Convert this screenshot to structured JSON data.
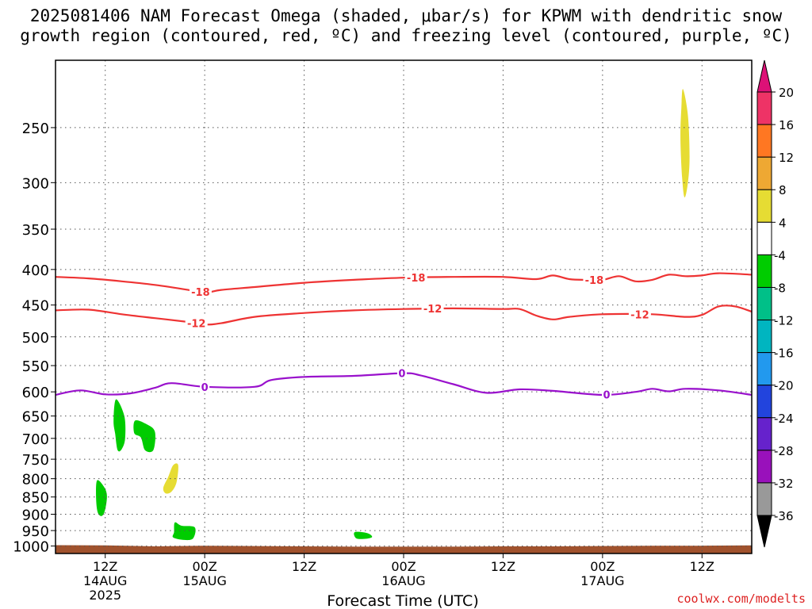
{
  "title": {
    "line1": "2025081406 NAM Forecast Omega (shaded, μbar/s) for KPWM with dendritic snow",
    "line2": "growth region (contoured, red, ºC) and freezing level (contoured, purple, ºC)"
  },
  "footer": "coolwx.com/modelts",
  "chart_data": {
    "type": "time-height",
    "xlabel": "Forecast Time (UTC)",
    "ylabel": "",
    "x_unit": "hours since 2025-08-14 06Z",
    "x_range": [
      0,
      84
    ],
    "y_ticks": [
      250,
      300,
      350,
      400,
      450,
      500,
      550,
      600,
      650,
      700,
      750,
      800,
      850,
      900,
      950,
      1000
    ],
    "y_range": [
      200,
      1025
    ],
    "y_scale": "log",
    "grid": true,
    "x_ticks": [
      {
        "hour": 6,
        "label": "12Z",
        "date": "14AUG",
        "year": "2025"
      },
      {
        "hour": 18,
        "label": "00Z",
        "date": "15AUG",
        "year": ""
      },
      {
        "hour": 30,
        "label": "12Z",
        "date": "",
        "year": ""
      },
      {
        "hour": 42,
        "label": "00Z",
        "date": "16AUG",
        "year": ""
      },
      {
        "hour": 54,
        "label": "12Z",
        "date": "",
        "year": ""
      },
      {
        "hour": 66,
        "label": "00Z",
        "date": "17AUG",
        "year": ""
      },
      {
        "hour": 78,
        "label": "12Z",
        "date": "",
        "year": ""
      }
    ],
    "contours": [
      {
        "name": "-18",
        "color": "#ee3333",
        "points": [
          [
            0,
            410
          ],
          [
            4,
            412
          ],
          [
            8,
            416
          ],
          [
            12,
            421
          ],
          [
            16,
            428
          ],
          [
            18,
            432
          ],
          [
            20,
            428
          ],
          [
            24,
            424
          ],
          [
            30,
            418
          ],
          [
            36,
            414
          ],
          [
            42,
            411
          ],
          [
            48,
            410
          ],
          [
            54,
            410
          ],
          [
            58,
            413
          ],
          [
            60,
            408
          ],
          [
            62,
            413
          ],
          [
            64,
            414
          ],
          [
            66,
            414
          ],
          [
            68,
            409
          ],
          [
            70,
            416
          ],
          [
            72,
            414
          ],
          [
            74,
            407
          ],
          [
            76,
            409
          ],
          [
            78,
            408
          ],
          [
            80,
            405
          ],
          [
            84,
            407
          ]
        ],
        "labels": [
          {
            "hour": 17.5,
            "text": "-18"
          },
          {
            "hour": 43.5,
            "text": "-18"
          },
          {
            "hour": 65,
            "text": "-18"
          }
        ]
      },
      {
        "name": "-12",
        "color": "#ee3333",
        "points": [
          [
            0,
            458
          ],
          [
            4,
            457
          ],
          [
            8,
            464
          ],
          [
            12,
            470
          ],
          [
            16,
            476
          ],
          [
            18,
            480
          ],
          [
            20,
            478
          ],
          [
            24,
            468
          ],
          [
            30,
            462
          ],
          [
            36,
            458
          ],
          [
            42,
            456
          ],
          [
            48,
            455
          ],
          [
            54,
            456
          ],
          [
            56,
            456
          ],
          [
            58,
            466
          ],
          [
            60,
            472
          ],
          [
            62,
            468
          ],
          [
            66,
            464
          ],
          [
            72,
            464
          ],
          [
            76,
            468
          ],
          [
            78,
            465
          ],
          [
            80,
            452
          ],
          [
            82,
            452
          ],
          [
            84,
            460
          ]
        ],
        "labels": [
          {
            "hour": 17,
            "text": "-12"
          },
          {
            "hour": 45.5,
            "text": "-12"
          },
          {
            "hour": 70.5,
            "text": "-12"
          }
        ]
      },
      {
        "name": "0",
        "color": "#9911cc",
        "points": [
          [
            0,
            606
          ],
          [
            3,
            597
          ],
          [
            6,
            605
          ],
          [
            9,
            603
          ],
          [
            12,
            592
          ],
          [
            14,
            583
          ],
          [
            18,
            590
          ],
          [
            24,
            590
          ],
          [
            26,
            577
          ],
          [
            30,
            571
          ],
          [
            36,
            569
          ],
          [
            42,
            564
          ],
          [
            44,
            568
          ],
          [
            48,
            585
          ],
          [
            52,
            602
          ],
          [
            56,
            595
          ],
          [
            60,
            598
          ],
          [
            66,
            606
          ],
          [
            70,
            600
          ],
          [
            72,
            594
          ],
          [
            74,
            599
          ],
          [
            76,
            594
          ],
          [
            80,
            597
          ],
          [
            84,
            606
          ]
        ],
        "labels": [
          {
            "hour": 18,
            "text": "0"
          },
          {
            "hour": 41.8,
            "text": "0"
          },
          {
            "hour": 66.5,
            "text": "0"
          }
        ]
      }
    ],
    "omega_regions": [
      {
        "color": "#00cc00",
        "points": [
          [
            7.3,
            615
          ],
          [
            8.3,
            650
          ],
          [
            8.4,
            700
          ],
          [
            8.0,
            725
          ],
          [
            7.5,
            728
          ],
          [
            7.2,
            690
          ],
          [
            7.0,
            660
          ]
        ]
      },
      {
        "color": "#00cc00",
        "points": [
          [
            9.6,
            660
          ],
          [
            11.0,
            668
          ],
          [
            12.0,
            685
          ],
          [
            11.8,
            728
          ],
          [
            10.8,
            728
          ],
          [
            10.3,
            698
          ],
          [
            9.5,
            688
          ]
        ]
      },
      {
        "color": "#00cc00",
        "points": [
          [
            5.0,
            805
          ],
          [
            5.8,
            820
          ],
          [
            6.2,
            845
          ],
          [
            6.0,
            885
          ],
          [
            5.6,
            905
          ],
          [
            5.1,
            895
          ],
          [
            4.9,
            855
          ]
        ]
      },
      {
        "color": "#00cc00",
        "points": [
          [
            14.4,
            925
          ],
          [
            15.2,
            935
          ],
          [
            16.8,
            940
          ],
          [
            16.6,
            975
          ],
          [
            15.5,
            980
          ],
          [
            14.2,
            972
          ],
          [
            14.3,
            955
          ]
        ]
      },
      {
        "color": "#00cc00",
        "points": [
          [
            36.1,
            955
          ],
          [
            37.6,
            958
          ],
          [
            38.2,
            970
          ],
          [
            37.5,
            976
          ],
          [
            36.3,
            975
          ]
        ]
      },
      {
        "color": "#e6dc33",
        "points": [
          [
            14.2,
            765
          ],
          [
            14.8,
            765
          ],
          [
            14.6,
            810
          ],
          [
            14.0,
            835
          ],
          [
            13.3,
            840
          ],
          [
            13.0,
            825
          ],
          [
            13.6,
            795
          ]
        ]
      },
      {
        "color": "#e6dc33",
        "points": [
          [
            75.7,
            220
          ],
          [
            76.3,
            240
          ],
          [
            76.5,
            275
          ],
          [
            76.3,
            300
          ],
          [
            75.9,
            315
          ],
          [
            75.6,
            295
          ],
          [
            75.4,
            260
          ],
          [
            75.5,
            235
          ]
        ]
      }
    ],
    "surface": {
      "color": "#a0522d",
      "points": [
        [
          0,
          997
        ],
        [
          6,
          998
        ],
        [
          12,
          1001
        ],
        [
          18,
          999
        ],
        [
          24,
          1000
        ],
        [
          30,
          1001
        ],
        [
          36,
          1002
        ],
        [
          42,
          1002
        ],
        [
          48,
          1002
        ],
        [
          54,
          1001
        ],
        [
          60,
          1001
        ],
        [
          66,
          1000
        ],
        [
          72,
          999
        ],
        [
          78,
          999
        ],
        [
          84,
          998
        ]
      ]
    },
    "colorbar": {
      "labels": [
        "20",
        "16",
        "12",
        "8",
        "4",
        "-4",
        "-8",
        "-12",
        "-16",
        "-20",
        "-24",
        "-28",
        "-32",
        "-36"
      ],
      "colors": [
        "#ee3366",
        "#ff7722",
        "#eea833",
        "#e6dc33",
        "#ffffff",
        "#00cc00",
        "#00c088",
        "#00b5c0",
        "#2299ee",
        "#2244dd",
        "#6622cc",
        "#9911bb",
        "#999999"
      ],
      "top_color": "#dd1177",
      "bottom_color": "#000000"
    }
  }
}
